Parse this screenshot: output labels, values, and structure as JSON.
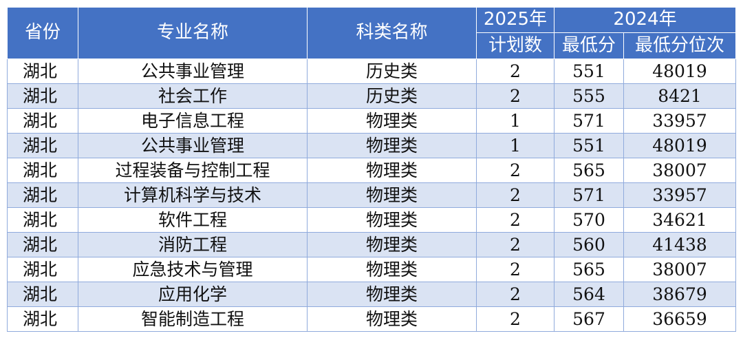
{
  "headers": {
    "province": "省份",
    "major": "专业名称",
    "category": "科类名称",
    "plan_year": "2025年",
    "plan_label": "计划数",
    "year_2024": "2024年",
    "min_score": "最低分",
    "min_rank": "最低分位次"
  },
  "rows": [
    {
      "province": "湖北",
      "major": "公共事业管理",
      "category": "历史类",
      "plan": "2",
      "min_score": "551",
      "min_rank": "48019"
    },
    {
      "province": "湖北",
      "major": "社会工作",
      "category": "历史类",
      "plan": "2",
      "min_score": "555",
      "min_rank": "8421"
    },
    {
      "province": "湖北",
      "major": "电子信息工程",
      "category": "物理类",
      "plan": "1",
      "min_score": "571",
      "min_rank": "33957"
    },
    {
      "province": "湖北",
      "major": "公共事业管理",
      "category": "物理类",
      "plan": "1",
      "min_score": "551",
      "min_rank": "48019"
    },
    {
      "province": "湖北",
      "major": "过程装备与控制工程",
      "category": "物理类",
      "plan": "2",
      "min_score": "565",
      "min_rank": "38007"
    },
    {
      "province": "湖北",
      "major": "计算机科学与技术",
      "category": "物理类",
      "plan": "2",
      "min_score": "571",
      "min_rank": "33957"
    },
    {
      "province": "湖北",
      "major": "软件工程",
      "category": "物理类",
      "plan": "2",
      "min_score": "570",
      "min_rank": "34621"
    },
    {
      "province": "湖北",
      "major": "消防工程",
      "category": "物理类",
      "plan": "2",
      "min_score": "560",
      "min_rank": "41438"
    },
    {
      "province": "湖北",
      "major": "应急技术与管理",
      "category": "物理类",
      "plan": "2",
      "min_score": "565",
      "min_rank": "38007"
    },
    {
      "province": "湖北",
      "major": "应用化学",
      "category": "物理类",
      "plan": "2",
      "min_score": "564",
      "min_rank": "38679"
    },
    {
      "province": "湖北",
      "major": "智能制造工程",
      "category": "物理类",
      "plan": "2",
      "min_score": "567",
      "min_rank": "36659"
    }
  ],
  "colors": {
    "header_bg": "#4472c4",
    "header_text": "#ffffff",
    "stripe": "#dae3f3",
    "border": "#8faadc"
  }
}
